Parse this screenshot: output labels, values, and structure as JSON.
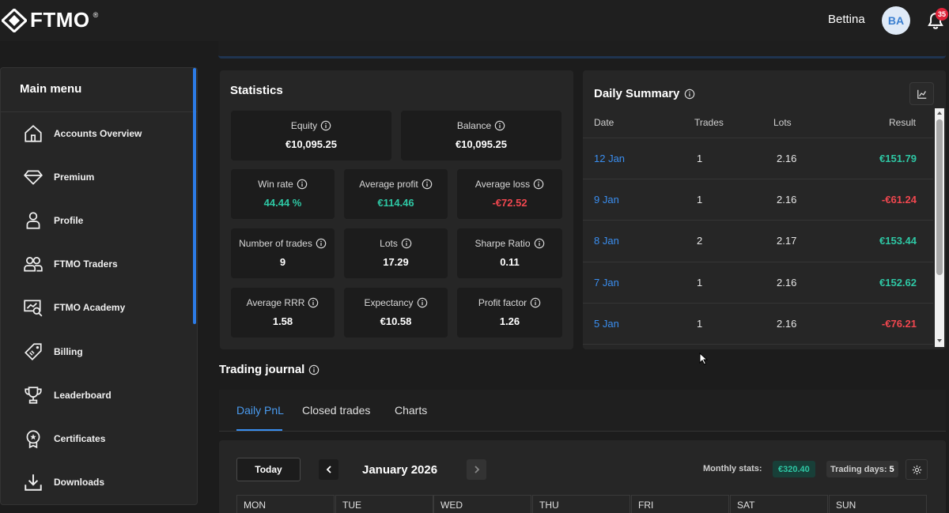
{
  "header": {
    "logo_text": "FTMO",
    "logo_mark": "®",
    "user_name": "Bettina",
    "avatar_initials": "BA",
    "notification_count": "35"
  },
  "sidebar": {
    "title": "Main menu",
    "items": [
      {
        "label": "Accounts Overview",
        "icon": "home-icon"
      },
      {
        "label": "Premium",
        "icon": "diamond-icon"
      },
      {
        "label": "Profile",
        "icon": "user-icon"
      },
      {
        "label": "FTMO Traders",
        "icon": "users-icon"
      },
      {
        "label": "FTMO Academy",
        "icon": "academy-icon"
      },
      {
        "label": "Billing",
        "icon": "tag-icon"
      },
      {
        "label": "Leaderboard",
        "icon": "trophy-icon"
      },
      {
        "label": "Certificates",
        "icon": "certificate-icon"
      },
      {
        "label": "Downloads",
        "icon": "download-icon"
      }
    ]
  },
  "statistics": {
    "title": "Statistics",
    "equity": {
      "label": "Equity",
      "value": "€10,095.25"
    },
    "balance": {
      "label": "Balance",
      "value": "€10,095.25"
    },
    "win_rate": {
      "label": "Win rate",
      "value": "44.44 %"
    },
    "average_profit": {
      "label": "Average profit",
      "value": "€114.46"
    },
    "average_loss": {
      "label": "Average loss",
      "value": "-€72.52"
    },
    "number_of_trades": {
      "label": "Number of trades",
      "value": "9"
    },
    "lots": {
      "label": "Lots",
      "value": "17.29"
    },
    "sharpe_ratio": {
      "label": "Sharpe Ratio",
      "value": "0.11"
    },
    "average_rrr": {
      "label": "Average RRR",
      "value": "1.58"
    },
    "expectancy": {
      "label": "Expectancy",
      "value": "€10.58"
    },
    "profit_factor": {
      "label": "Profit factor",
      "value": "1.26"
    }
  },
  "daily_summary": {
    "title": "Daily Summary",
    "columns": [
      "Date",
      "Trades",
      "Lots",
      "Result"
    ],
    "rows": [
      {
        "date": "12 Jan",
        "trades": "1",
        "lots": "2.16",
        "result": "€151.79"
      },
      {
        "date": "9 Jan",
        "trades": "1",
        "lots": "2.16",
        "result": "-€61.24"
      },
      {
        "date": "8 Jan",
        "trades": "2",
        "lots": "2.17",
        "result": "€153.44"
      },
      {
        "date": "7 Jan",
        "trades": "1",
        "lots": "2.16",
        "result": "€152.62"
      },
      {
        "date": "5 Jan",
        "trades": "1",
        "lots": "2.16",
        "result": "-€76.21"
      }
    ],
    "colors": {
      "positive": "#2ec7a4",
      "negative": "#f0474f",
      "date": "#3a8ef0"
    }
  },
  "journal": {
    "title": "Trading journal",
    "tabs": [
      "Daily PnL",
      "Closed trades",
      "Charts"
    ],
    "active_tab": "Daily PnL",
    "today_label": "Today",
    "month": "January 2026",
    "monthly_stats_label": "Monthly stats:",
    "monthly_stats_value": "€320.40",
    "trading_days_label": "Trading days:",
    "trading_days_value": "5",
    "weekdays": [
      "MON",
      "TUE",
      "WED",
      "THU",
      "FRI",
      "SAT",
      "SUN"
    ]
  }
}
